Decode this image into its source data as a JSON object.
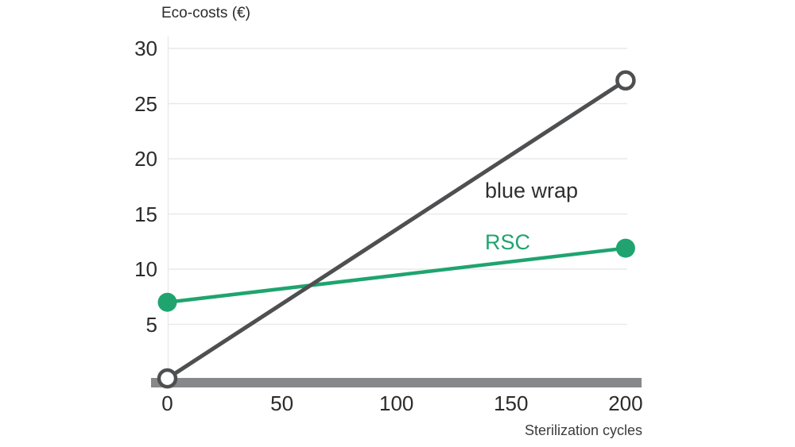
{
  "chart_data": {
    "type": "line",
    "title": "Eco-costs (€)",
    "xlabel": "Sterilization cycles",
    "ylabel": "Eco-costs (€)",
    "xticks": [
      "0",
      "50",
      "100",
      "150",
      "200"
    ],
    "yticks": [
      "30",
      "25",
      "20",
      "15",
      "10",
      "5"
    ],
    "xtick_values": [
      0,
      50,
      100,
      150,
      200
    ],
    "ytick_values": [
      30,
      25,
      20,
      15,
      10,
      5
    ],
    "xlim": [
      0,
      200
    ],
    "ylim": [
      0,
      31
    ],
    "grid": "horizontal",
    "legend_position": "inline-annotations",
    "series": [
      {
        "name": "RSC",
        "label_text": "RSC",
        "color": "#1fa46f",
        "label_color": "#1fa46f",
        "marker": "filled-circle",
        "x": [
          0,
          200
        ],
        "y": [
          7.0,
          11.9
        ]
      },
      {
        "name": "blue wrap",
        "label_text": "blue wrap",
        "color": "#4e4f51",
        "label_color": "#2f2f2f",
        "marker": "open-circle",
        "x": [
          0,
          200
        ],
        "y": [
          0.1,
          27.1
        ]
      }
    ],
    "grid_color": "#e9e9e9",
    "axis_bar_color": "#87888a",
    "text_color": "#2b2b2b"
  }
}
